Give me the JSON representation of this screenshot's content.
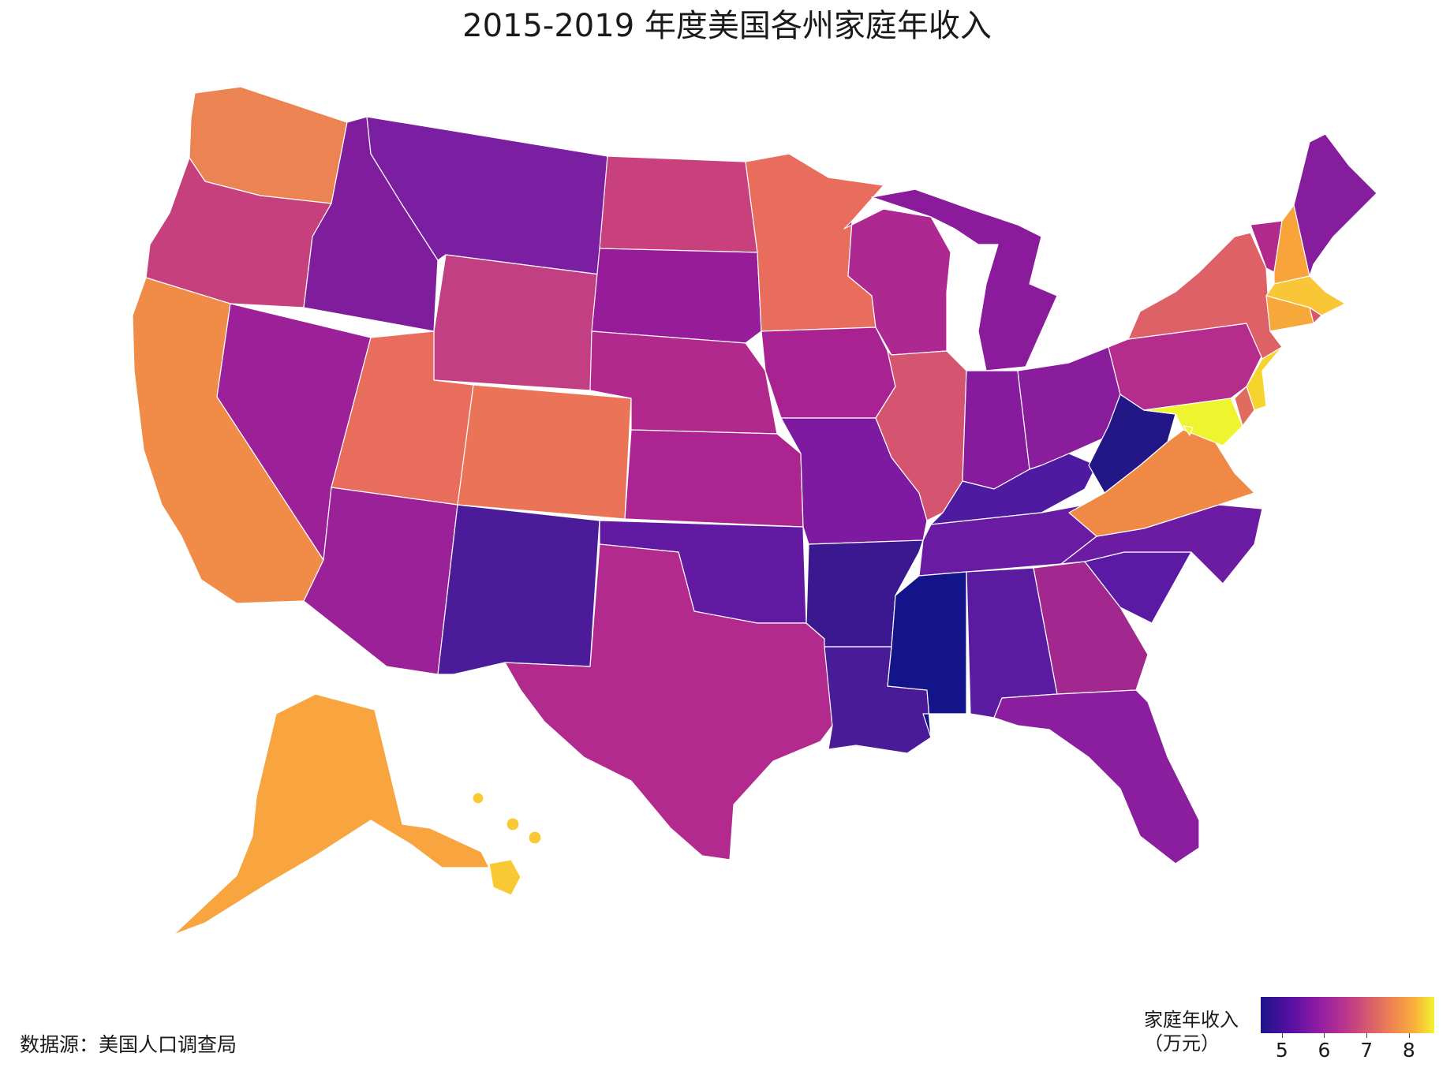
{
  "title": "2015-2019 年度美国各州家庭年收入",
  "source": "数据源：美国人口调查局",
  "legend": {
    "title_line1": "家庭年收入",
    "title_line2": "（万元）",
    "ticks": [
      "5",
      "6",
      "7",
      "8"
    ],
    "range": [
      4.5,
      8.6
    ],
    "colorscale": [
      "#1b1688",
      "#5a0fa3",
      "#8f1da3",
      "#b8348f",
      "#d65a6f",
      "#ee8254",
      "#f9ad3c",
      "#f3f22f"
    ]
  },
  "map_data": {
    "type": "choropleth",
    "variable": "家庭年收入",
    "states": [
      {
        "code": "WA",
        "value": 7.4,
        "color": "#ec8352"
      },
      {
        "code": "OR",
        "value": 6.7,
        "color": "#c7407e"
      },
      {
        "code": "CA",
        "value": 7.6,
        "color": "#f08c48"
      },
      {
        "code": "NV",
        "value": 6.3,
        "color": "#9c2198"
      },
      {
        "code": "ID",
        "value": 5.8,
        "color": "#801d9d"
      },
      {
        "code": "MT",
        "value": 5.7,
        "color": "#7b1fa2"
      },
      {
        "code": "WY",
        "value": 6.5,
        "color": "#c13f82"
      },
      {
        "code": "UT",
        "value": 7.2,
        "color": "#e86d5c"
      },
      {
        "code": "AZ",
        "value": 6.2,
        "color": "#9a2197"
      },
      {
        "code": "CO",
        "value": 7.3,
        "color": "#eb7458"
      },
      {
        "code": "NM",
        "value": 5.0,
        "color": "#4c1b99"
      },
      {
        "code": "ND",
        "value": 6.6,
        "color": "#c8417c"
      },
      {
        "code": "SD",
        "value": 6.0,
        "color": "#961c9a"
      },
      {
        "code": "NE",
        "value": 6.3,
        "color": "#b2298e"
      },
      {
        "code": "KS",
        "value": 6.2,
        "color": "#ab248f"
      },
      {
        "code": "OK",
        "value": 5.3,
        "color": "#631aa3"
      },
      {
        "code": "TX",
        "value": 6.4,
        "color": "#b22a8e"
      },
      {
        "code": "MN",
        "value": 7.2,
        "color": "#e96d5d"
      },
      {
        "code": "IA",
        "value": 6.2,
        "color": "#a82291"
      },
      {
        "code": "MO",
        "value": 5.6,
        "color": "#7d1aa0"
      },
      {
        "code": "AR",
        "value": 4.9,
        "color": "#3a1890"
      },
      {
        "code": "LA",
        "value": 5.0,
        "color": "#4a1b98"
      },
      {
        "code": "WI",
        "value": 6.3,
        "color": "#ad2890"
      },
      {
        "code": "IL",
        "value": 6.8,
        "color": "#d55571"
      },
      {
        "code": "MI",
        "value": 5.9,
        "color": "#8a1c9b"
      },
      {
        "code": "IN",
        "value": 5.7,
        "color": "#871b9e"
      },
      {
        "code": "OH",
        "value": 5.8,
        "color": "#8a1d9c"
      },
      {
        "code": "KY",
        "value": 5.1,
        "color": "#4e1aa0"
      },
      {
        "code": "TN",
        "value": 5.4,
        "color": "#6a1ba3"
      },
      {
        "code": "MS",
        "value": 4.5,
        "color": "#13148a"
      },
      {
        "code": "AL",
        "value": 5.1,
        "color": "#5a1ba0"
      },
      {
        "code": "GA",
        "value": 6.1,
        "color": "#a2278e"
      },
      {
        "code": "FL",
        "value": 5.6,
        "color": "#8a1e9f"
      },
      {
        "code": "SC",
        "value": 5.4,
        "color": "#5a1aa4"
      },
      {
        "code": "NC",
        "value": 5.5,
        "color": "#6c1ba3"
      },
      {
        "code": "VA",
        "value": 7.5,
        "color": "#f08945"
      },
      {
        "code": "WV",
        "value": 4.6,
        "color": "#231687"
      },
      {
        "code": "PA",
        "value": 6.3,
        "color": "#b42c8c"
      },
      {
        "code": "NY",
        "value": 6.9,
        "color": "#de6167"
      },
      {
        "code": "VT",
        "value": 6.1,
        "color": "#b2298e"
      },
      {
        "code": "NH",
        "value": 7.7,
        "color": "#f8a43a"
      },
      {
        "code": "ME",
        "value": 5.7,
        "color": "#851d9c"
      },
      {
        "code": "MA",
        "value": 8.1,
        "color": "#f8c636"
      },
      {
        "code": "RI",
        "value": 6.8,
        "color": "#d8576e"
      },
      {
        "code": "CT",
        "value": 7.8,
        "color": "#f7a83b"
      },
      {
        "code": "NJ",
        "value": 8.2,
        "color": "#f5d42e"
      },
      {
        "code": "DE",
        "value": 7.0,
        "color": "#e06c60"
      },
      {
        "code": "MD",
        "value": 8.4,
        "color": "#eef42d"
      },
      {
        "code": "DC",
        "value": 8.6,
        "color": "#f5f227"
      },
      {
        "code": "AK",
        "value": 7.7,
        "color": "#f8a540"
      },
      {
        "code": "HI",
        "value": 8.1,
        "color": "#f9c933"
      }
    ]
  }
}
